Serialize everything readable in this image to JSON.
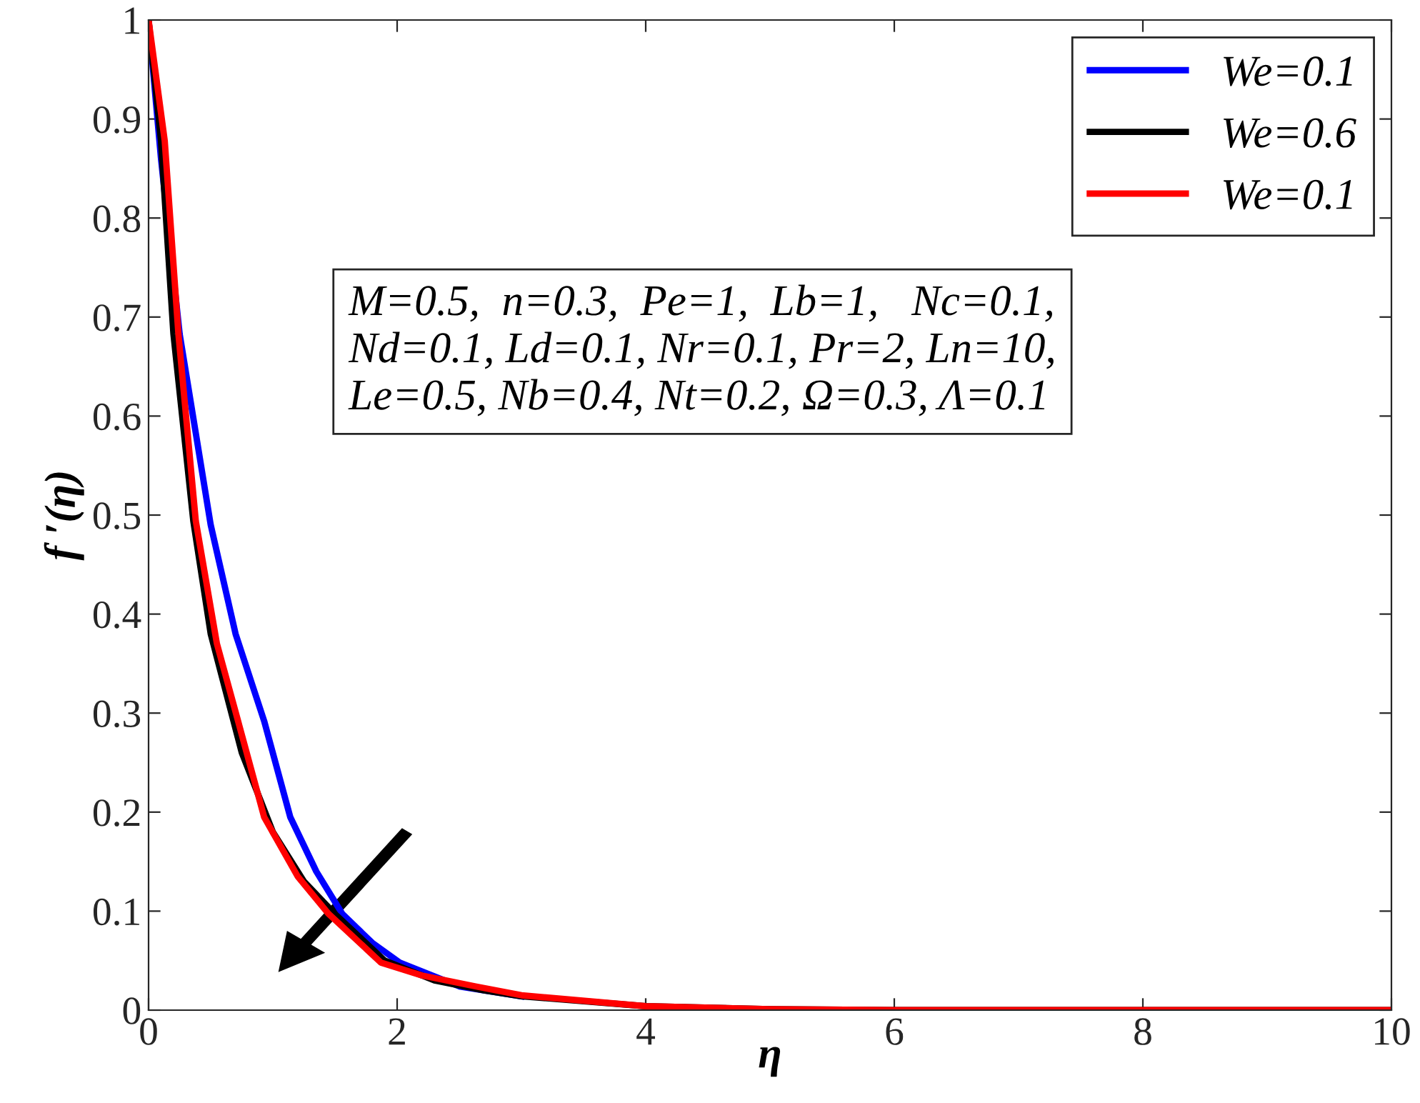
{
  "chart_data": {
    "type": "line",
    "xlabel": "η",
    "ylabel": "f ′(η)",
    "xlim": [
      0,
      10
    ],
    "ylim": [
      0,
      1
    ],
    "xticks": [
      0,
      2,
      4,
      6,
      8,
      10
    ],
    "yticks": [
      0,
      0.1,
      0.2,
      0.3,
      0.4,
      0.5,
      0.6,
      0.7,
      0.8,
      0.9,
      1
    ],
    "grid": false,
    "legend": "top right",
    "line_style": "solid",
    "marker": "none",
    "annotations": [
      "M=0.5,  n=0.3,  Pe=1,  Lb=1,   Nc=0.1,\nNd=0.1, Ld=0.1, Nr=0.1, Pr=2, Ln=10,\nLe=0.5, Nb=0.4, Nt=0.2, Ω=0.3, Λ=0.1"
    ],
    "series": [
      {
        "name": "We=0.1",
        "color": "#0000ff",
        "x": [
          0,
          0.1,
          0.25,
          0.5,
          0.7,
          0.93,
          1.14,
          1.35,
          1.56,
          1.8,
          2.02,
          2.5,
          3
        ],
        "values": [
          1,
          0.86,
          0.683,
          0.49,
          0.38,
          0.292,
          0.195,
          0.14,
          0.097,
          0.068,
          0.048,
          0.024,
          0.014
        ]
      },
      {
        "name": "We=0.6",
        "color": "#000000",
        "x": [
          0,
          0.1,
          0.2,
          0.36,
          0.5,
          0.75,
          1.0,
          1.25,
          1.5,
          1.9,
          2.3,
          2.7,
          3,
          4,
          5,
          6,
          8,
          10
        ],
        "values": [
          1,
          0.878,
          0.683,
          0.494,
          0.38,
          0.26,
          0.18,
          0.13,
          0.097,
          0.05,
          0.03,
          0.02,
          0.014,
          0.004,
          0.001,
          0,
          0,
          0
        ]
      },
      {
        "name": "We=0.1",
        "color": "#ff0000",
        "x": [
          0,
          0.13,
          0.24,
          0.38,
          0.55,
          0.72,
          0.93,
          1.2,
          1.45,
          1.87,
          2.2,
          2.63,
          3,
          4,
          5,
          6,
          8,
          10
        ],
        "values": [
          1,
          0.878,
          0.683,
          0.494,
          0.37,
          0.292,
          0.195,
          0.135,
          0.097,
          0.048,
          0.035,
          0.024,
          0.015,
          0.004,
          0.001,
          0,
          0,
          0
        ]
      }
    ]
  }
}
